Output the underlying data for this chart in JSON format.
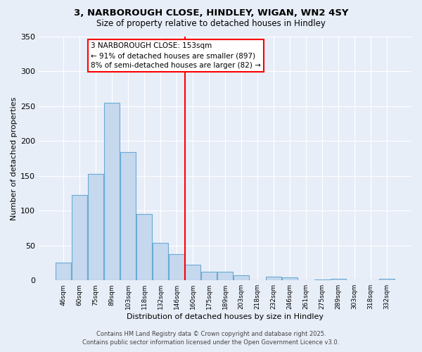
{
  "title1": "3, NARBOROUGH CLOSE, HINDLEY, WIGAN, WN2 4SY",
  "title2": "Size of property relative to detached houses in Hindley",
  "xlabel": "Distribution of detached houses by size in Hindley",
  "ylabel": "Number of detached properties",
  "categories": [
    "46sqm",
    "60sqm",
    "75sqm",
    "89sqm",
    "103sqm",
    "118sqm",
    "132sqm",
    "146sqm",
    "160sqm",
    "175sqm",
    "189sqm",
    "203sqm",
    "218sqm",
    "232sqm",
    "246sqm",
    "261sqm",
    "275sqm",
    "289sqm",
    "303sqm",
    "318sqm",
    "332sqm"
  ],
  "values": [
    25,
    122,
    153,
    255,
    184,
    95,
    54,
    38,
    22,
    12,
    12,
    7,
    0,
    5,
    4,
    0,
    1,
    2,
    0,
    0,
    2
  ],
  "bar_color": "#c5d8ee",
  "bar_edge_color": "#6aaad4",
  "red_line_x": 7.5,
  "annotation_title": "3 NARBOROUGH CLOSE: 153sqm",
  "annotation_line1": "← 91% of detached houses are smaller (897)",
  "annotation_line2": "8% of semi-detached houses are larger (82) →",
  "footer1": "Contains HM Land Registry data © Crown copyright and database right 2025.",
  "footer2": "Contains public sector information licensed under the Open Government Licence v3.0.",
  "ylim": [
    0,
    350
  ],
  "yticks": [
    0,
    50,
    100,
    150,
    200,
    250,
    300,
    350
  ],
  "background_color": "#e8eef8",
  "plot_bg_color": "#e8eef8",
  "grid_color": "#ffffff"
}
